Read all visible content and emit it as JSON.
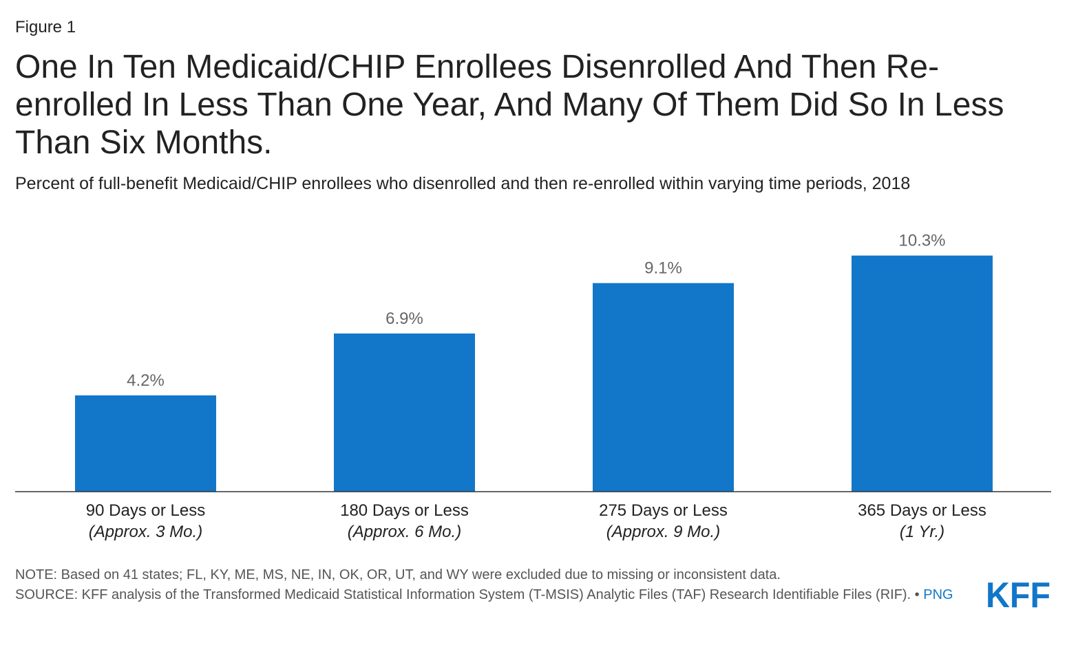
{
  "figure_label": "Figure 1",
  "title": "One In Ten Medicaid/CHIP Enrollees Disenrolled And Then Re-enrolled In Less Than One Year, And Many Of Them Did So In Less Than Six Months.",
  "subtitle": "Percent of full-benefit Medicaid/CHIP enrollees who disenrolled and then re-enrolled within varying time periods, 2018",
  "chart_data": {
    "type": "bar",
    "categories": [
      "90 Days or Less",
      "180 Days or Less",
      "275 Days or Less",
      "365 Days or Less"
    ],
    "category_sublabels": [
      "(Approx. 3 Mo.)",
      "(Approx. 6 Mo.)",
      "(Approx. 9 Mo.)",
      "(1 Yr.)"
    ],
    "values": [
      4.2,
      6.9,
      9.1,
      10.3
    ],
    "value_labels": [
      "4.2%",
      "6.9%",
      "9.1%",
      "10.3%"
    ],
    "ylim": [
      0,
      12
    ],
    "grid": false,
    "legend": "none",
    "bar_color": "#1276c9"
  },
  "note": "NOTE: Based on 41 states; FL, KY, ME, MS, NE, IN, OK, OR, UT, and WY were excluded due to missing or inconsistent data.",
  "source": "SOURCE: KFF analysis of the Transformed Medicaid Statistical Information System (T-MSIS) Analytic Files (TAF) Research Identifiable Files (RIF). •",
  "png_link": "PNG",
  "logo_text": "KFF",
  "colors": {
    "accent": "#1276c9",
    "text": "#222222",
    "muted": "#555555",
    "value_label": "#666666"
  }
}
